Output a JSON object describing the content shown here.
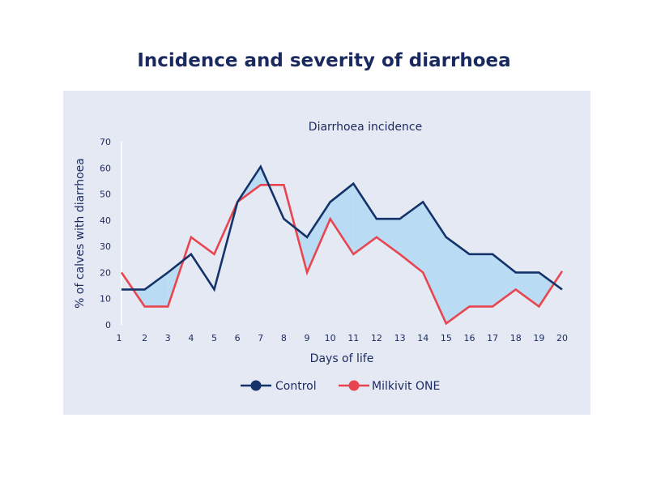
{
  "page": {
    "title": "Incidence and severity of diarrhoea"
  },
  "colors": {
    "panel_bg": "#e4e9f3",
    "control": "#13336a",
    "milkivit": "#e84550",
    "fill": "#b9dcf4",
    "text": "#1a2a5e"
  },
  "chart_data": {
    "type": "line",
    "title": "Diarrhoea incidence",
    "xlabel": "Days of life",
    "ylabel": "% of calves with diarrhoea",
    "x": [
      1,
      2,
      3,
      4,
      5,
      6,
      7,
      8,
      9,
      10,
      11,
      12,
      13,
      14,
      15,
      16,
      17,
      18,
      19,
      20
    ],
    "xlim": [
      1,
      20
    ],
    "ylim": [
      0,
      70
    ],
    "yticks": [
      0,
      10,
      20,
      30,
      40,
      50,
      60,
      70
    ],
    "grid": false,
    "legend": "bottom-center",
    "series": [
      {
        "name": "Control",
        "color": "#13336a",
        "values": [
          13.5,
          13.5,
          20,
          27,
          13.5,
          47,
          60.5,
          40.5,
          33.5,
          47,
          54,
          40.5,
          40.5,
          47,
          33.5,
          27,
          27,
          20,
          20,
          13.5
        ]
      },
      {
        "name": "Milkivit ONE",
        "color": "#e84550",
        "values": [
          20,
          7,
          7,
          33.5,
          27,
          47,
          53.5,
          53.5,
          20,
          40.5,
          27,
          33.5,
          27,
          20,
          0.5,
          7,
          7,
          13.5,
          7,
          20.5
        ]
      }
    ],
    "shaded_region": "area where Control exceeds Milkivit ONE"
  }
}
